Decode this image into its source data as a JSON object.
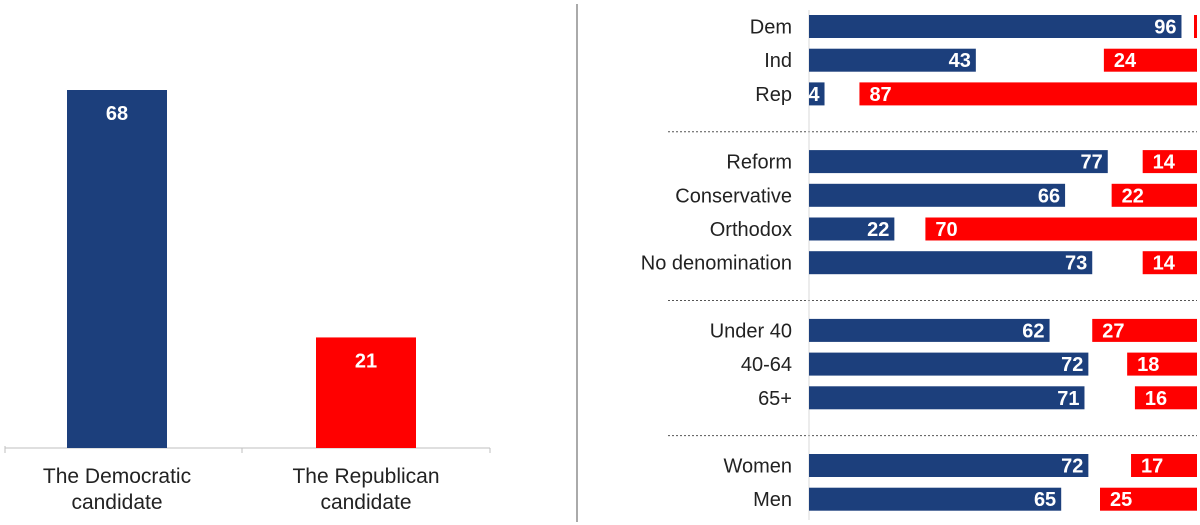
{
  "colors": {
    "democratic": "#1c3f7c",
    "republican": "#ff0000",
    "axis": "#bfbfbf",
    "divider": "#555555",
    "text": "#222222",
    "label": "#ffffff"
  },
  "chart_data": [
    {
      "type": "bar",
      "title": "",
      "xlabel": "",
      "ylabel": "",
      "categories": [
        [
          "The Democratic",
          "candidate"
        ],
        [
          "The Republican",
          "candidate"
        ]
      ],
      "values": [
        68,
        21
      ],
      "ylim": [
        0,
        80
      ],
      "grid": false,
      "legend": "none"
    },
    {
      "type": "bar",
      "orientation": "horizontal",
      "title": "",
      "xlabel": "",
      "ylabel": "",
      "xlim": [
        0,
        100
      ],
      "grid": false,
      "legend": "none",
      "groups": [
        {
          "rows": [
            {
              "label": "Dem",
              "democratic": 96,
              "republican": null
            },
            {
              "label": "Ind",
              "democratic": 43,
              "republican": 24
            },
            {
              "label": "Rep",
              "democratic": 4,
              "republican": 87
            }
          ]
        },
        {
          "rows": [
            {
              "label": "Reform",
              "democratic": 77,
              "republican": 14
            },
            {
              "label": "Conservative",
              "democratic": 66,
              "republican": 22
            },
            {
              "label": "Orthodox",
              "democratic": 22,
              "republican": 70
            },
            {
              "label": "No denomination",
              "democratic": 73,
              "republican": 14
            }
          ]
        },
        {
          "rows": [
            {
              "label": "Under 40",
              "democratic": 62,
              "republican": 27
            },
            {
              "label": "40-64",
              "democratic": 72,
              "republican": 18
            },
            {
              "label": "65+",
              "democratic": 71,
              "republican": 16
            }
          ]
        },
        {
          "rows": [
            {
              "label": "Women",
              "democratic": 72,
              "republican": 17
            },
            {
              "label": "Men",
              "democratic": 65,
              "republican": 25
            }
          ]
        }
      ]
    }
  ]
}
